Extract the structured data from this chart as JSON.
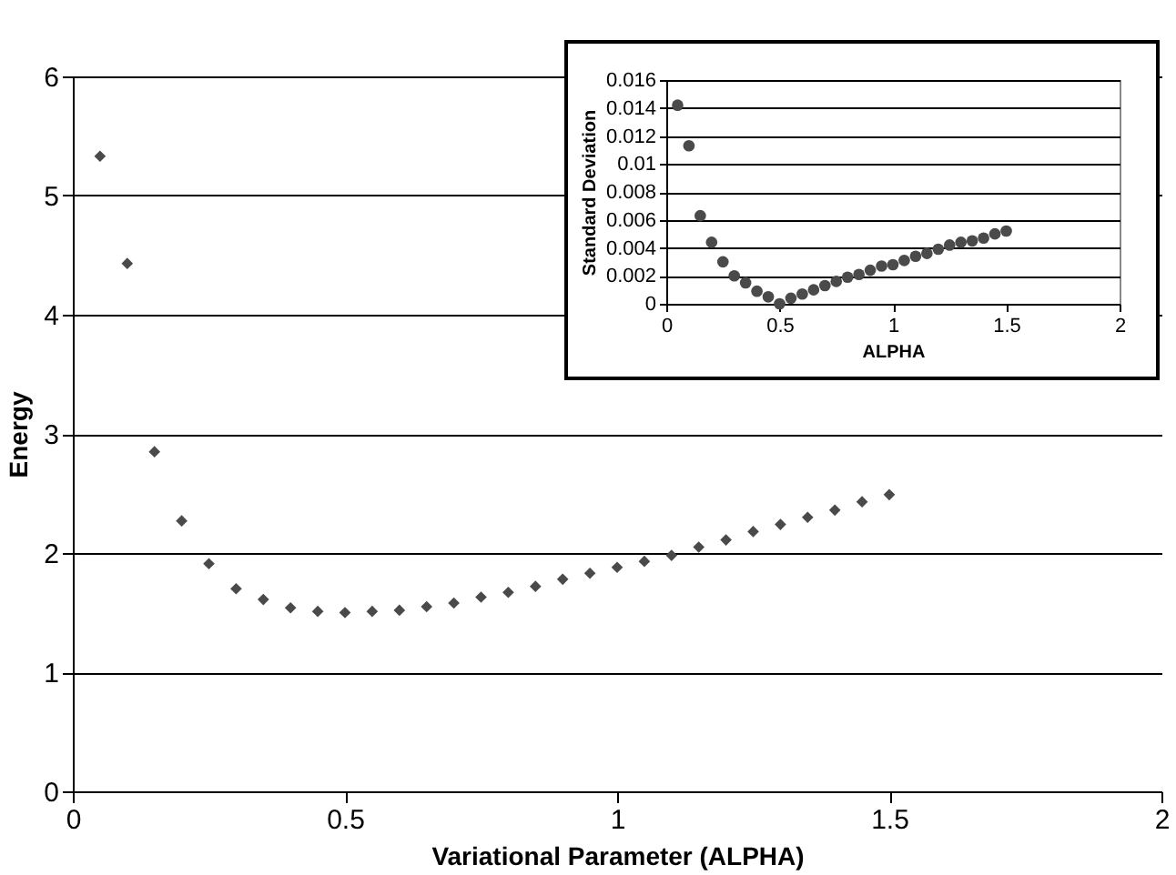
{
  "chart_data": [
    {
      "type": "scatter",
      "xlabel": "Variational Parameter (ALPHA)",
      "ylabel": "Energy",
      "x": [
        0.05,
        0.1,
        0.15,
        0.2,
        0.25,
        0.3,
        0.35,
        0.4,
        0.45,
        0.5,
        0.55,
        0.6,
        0.65,
        0.7,
        0.75,
        0.8,
        0.85,
        0.9,
        0.95,
        1.0,
        1.05,
        1.1,
        1.15,
        1.2,
        1.25,
        1.3,
        1.35,
        1.4,
        1.45,
        1.5
      ],
      "series": [
        {
          "color": "#4a4a4a",
          "values": [
            5.33,
            4.43,
            2.85,
            2.27,
            1.91,
            1.7,
            1.61,
            1.54,
            1.51,
            1.5,
            1.51,
            1.52,
            1.55,
            1.58,
            1.63,
            1.67,
            1.72,
            1.78,
            1.83,
            1.88,
            1.93,
            1.98,
            2.05,
            2.11,
            2.18,
            2.24,
            2.3,
            2.36,
            2.43,
            2.49
          ]
        }
      ],
      "xlim": [
        0,
        2
      ],
      "xticks": [
        0,
        0.5,
        1,
        1.5,
        2
      ],
      "ylim": [
        0,
        6
      ],
      "yticks": [
        0,
        1,
        2,
        3,
        4,
        5,
        6
      ],
      "grid": "y",
      "marker": "diamond"
    },
    {
      "type": "scatter",
      "xlabel": "ALPHA",
      "ylabel": "Standard Deviation",
      "x": [
        0.05,
        0.1,
        0.15,
        0.2,
        0.25,
        0.3,
        0.35,
        0.4,
        0.45,
        0.5,
        0.55,
        0.6,
        0.65,
        0.7,
        0.75,
        0.8,
        0.85,
        0.9,
        0.95,
        1.0,
        1.05,
        1.1,
        1.15,
        1.2,
        1.25,
        1.3,
        1.35,
        1.4,
        1.45,
        1.5
      ],
      "series": [
        {
          "color": "#4a4a4a",
          "values": [
            0.0142,
            0.0113,
            0.0063,
            0.0044,
            0.003,
            0.002,
            0.0015,
            0.0009,
            0.0005,
            0.0,
            0.0004,
            0.0007,
            0.001,
            0.0013,
            0.0016,
            0.0019,
            0.0021,
            0.0024,
            0.0027,
            0.0028,
            0.0031,
            0.0034,
            0.0036,
            0.0039,
            0.0042,
            0.0044,
            0.0045,
            0.0047,
            0.005,
            0.0052
          ]
        }
      ],
      "xlim": [
        0,
        2
      ],
      "xticks": [
        0,
        0.5,
        1,
        1.5,
        2
      ],
      "ylim": [
        0,
        0.016
      ],
      "yticks": [
        0,
        0.002,
        0.004,
        0.006,
        0.008,
        0.01,
        0.012,
        0.014,
        0.016
      ],
      "grid": "y",
      "marker": "circle"
    }
  ]
}
